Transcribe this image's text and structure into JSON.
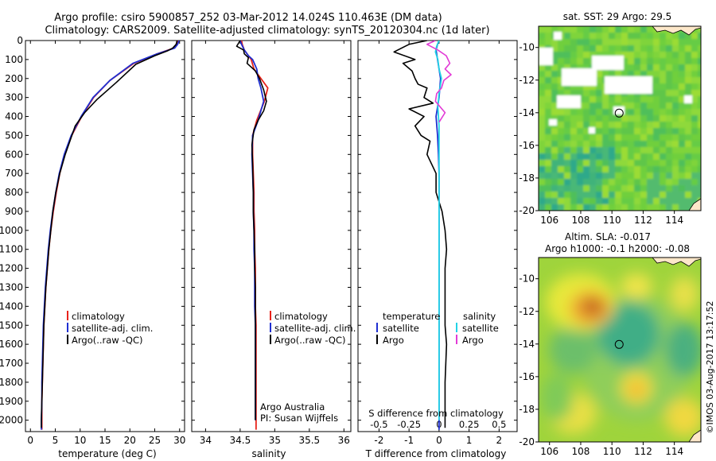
{
  "header": {
    "title_line1": "Argo profile: csiro 5900857_252 03-Mar-2012 14.024S 110.463E (DM data)",
    "title_line2": "Climatology: CARS2009. Satellite-adjusted climatology: synTS_20120304.nc (1d later)"
  },
  "footer": {
    "stamp": "©IMOS 03-Aug-2017 13:17:52"
  },
  "colors": {
    "climatology": "#e8231b",
    "satellite": "#1f2fd1",
    "argo": "#000000",
    "salinity_satellite": "#22d3e6",
    "salinity_argo": "#e23ad6"
  },
  "chart_data": [
    {
      "type": "line",
      "title": "",
      "xlabel": "temperature (deg C)",
      "ylabel": "",
      "xlim": [
        -1,
        31
      ],
      "ylim": [
        2060,
        0
      ],
      "xticks": [
        0,
        5,
        10,
        15,
        20,
        25,
        30
      ],
      "yticks": [
        0,
        100,
        200,
        300,
        400,
        500,
        600,
        700,
        800,
        900,
        1000,
        1100,
        1200,
        1300,
        1400,
        1500,
        1600,
        1700,
        1800,
        1900,
        2000
      ],
      "legend": {
        "position": "bottom-center",
        "entries": [
          "climatology",
          "satellite-adj. clim.",
          "Argo(..raw -QC)"
        ]
      },
      "series": [
        {
          "name": "climatology",
          "color": "#e8231b",
          "x": [
            29.6,
            29.4,
            28.8,
            25.5,
            20.8,
            16.0,
            12.7,
            10.3,
            8.3,
            6.9,
            5.9,
            5.2,
            4.6,
            4.1,
            3.7,
            3.4,
            3.1,
            2.9,
            2.7,
            2.6,
            2.5,
            2.4,
            2.3,
            2.3,
            2.3
          ],
          "y": [
            0,
            20,
            40,
            70,
            120,
            210,
            300,
            400,
            500,
            600,
            700,
            800,
            900,
            1000,
            1100,
            1200,
            1300,
            1400,
            1500,
            1600,
            1700,
            1800,
            1900,
            2000,
            2050
          ]
        },
        {
          "name": "satellite-adj. clim.",
          "color": "#1f2fd1",
          "x": [
            29.9,
            29.6,
            29.0,
            25.5,
            20.6,
            16.0,
            12.6,
            10.2,
            8.2,
            6.8,
            5.8,
            5.1,
            4.5,
            4.0,
            3.6,
            3.3,
            3.0,
            2.8,
            2.6,
            2.5,
            2.4,
            2.3,
            2.3,
            2.2,
            2.2
          ],
          "y": [
            0,
            20,
            40,
            70,
            120,
            210,
            300,
            400,
            500,
            600,
            700,
            800,
            900,
            1000,
            1100,
            1200,
            1300,
            1400,
            1500,
            1600,
            1700,
            1800,
            1900,
            2000,
            2050
          ]
        },
        {
          "name": "Argo(..raw -QC)",
          "color": "#000000",
          "x": [
            29.5,
            29.3,
            28.6,
            27.5,
            25.0,
            21.2,
            17.3,
            13.4,
            10.9,
            9.0,
            7.0,
            5.9,
            5.1,
            4.5,
            4.1,
            3.7,
            3.4,
            3.1,
            2.9,
            2.7,
            2.6,
            2.5,
            2.4,
            2.3,
            2.2,
            2.2
          ],
          "y": [
            0,
            20,
            40,
            55,
            80,
            125,
            220,
            310,
            380,
            450,
            600,
            700,
            800,
            900,
            1000,
            1100,
            1200,
            1300,
            1400,
            1500,
            1600,
            1700,
            1800,
            1900,
            2000,
            2040
          ]
        }
      ]
    },
    {
      "type": "line",
      "title": "",
      "xlabel": "salinity",
      "ylabel": "",
      "xlim": [
        33.8,
        36.1
      ],
      "ylim": [
        2060,
        0
      ],
      "xticks": [
        34,
        34.5,
        35,
        35.5,
        36
      ],
      "legend": {
        "position": "bottom-center",
        "entries": [
          "climatology",
          "satellite-adj. clim.",
          "Argo(..raw -QC)"
        ]
      },
      "annotation": "Argo Australia\nPI: Susan Wijffels",
      "series": [
        {
          "name": "climatology",
          "color": "#e8231b",
          "x": [
            34.52,
            34.53,
            34.56,
            34.62,
            34.66,
            34.7,
            34.8,
            34.9,
            34.85,
            34.74,
            34.68,
            34.68,
            34.69,
            34.7,
            34.7,
            34.71,
            34.71,
            34.72,
            34.72,
            34.72,
            34.73,
            34.73,
            34.73,
            34.73,
            34.73,
            34.73
          ],
          "y": [
            0,
            20,
            50,
            80,
            100,
            150,
            200,
            250,
            320,
            420,
            500,
            600,
            700,
            800,
            900,
            1000,
            1100,
            1200,
            1300,
            1400,
            1500,
            1600,
            1700,
            1800,
            1900,
            2050
          ]
        },
        {
          "name": "satellite-adj. clim.",
          "color": "#1f2fd1",
          "x": [
            34.5,
            34.52,
            34.56,
            34.62,
            34.68,
            34.74,
            34.76,
            34.8,
            34.84,
            34.76,
            34.68,
            34.67,
            34.68,
            34.69,
            34.69,
            34.7,
            34.7,
            34.71,
            34.71,
            34.71,
            34.72,
            34.72,
            34.72,
            34.72,
            34.72,
            34.72
          ],
          "y": [
            0,
            20,
            50,
            80,
            100,
            150,
            200,
            250,
            320,
            420,
            500,
            600,
            700,
            800,
            900,
            1000,
            1100,
            1200,
            1300,
            1400,
            1500,
            1600,
            1700,
            1800,
            1900,
            2000
          ]
        },
        {
          "name": "Argo(..raw -QC)",
          "color": "#000000",
          "x": [
            34.5,
            34.45,
            34.55,
            34.56,
            34.62,
            34.6,
            34.72,
            34.78,
            34.84,
            34.88,
            34.84,
            34.76,
            34.7,
            34.67,
            34.68,
            34.69,
            34.69,
            34.7,
            34.71,
            34.71,
            34.72,
            34.72,
            34.72,
            34.72,
            34.72,
            34.72
          ],
          "y": [
            0,
            30,
            50,
            70,
            90,
            120,
            160,
            200,
            260,
            320,
            370,
            420,
            470,
            550,
            650,
            800,
            900,
            1000,
            1100,
            1200,
            1300,
            1400,
            1500,
            1600,
            1800,
            2000
          ]
        }
      ]
    },
    {
      "type": "line",
      "title": "",
      "xlabel": "T difference from climatology",
      "xlabel_top": "S difference from climatology",
      "ylabel": "",
      "xlim": [
        -2.7,
        2.6
      ],
      "ylim": [
        2060,
        0
      ],
      "xticks": [
        -2,
        -1,
        0,
        1,
        2
      ],
      "xticks_top": [
        "-0.5",
        "-0.25",
        "0",
        "0.25",
        "0.5"
      ],
      "legend": {
        "position": "bottom-center",
        "groups": [
          "temperature",
          "salinity"
        ],
        "entries": [
          "satellite",
          "Argo",
          "satellite",
          "Argo"
        ]
      },
      "series": [
        {
          "name": "satellite",
          "group": "temperature",
          "color": "#1f2fd1",
          "x": [
            0.0,
            -0.05,
            -0.1,
            -0.05,
            0.0,
            0.05,
            0.0,
            -0.05,
            -0.1,
            -0.05,
            -0.02,
            0.0,
            0.0,
            0.0,
            0.0,
            0.0,
            0.0,
            0.0,
            0.0,
            0.0,
            0.0,
            0.0
          ],
          "y": [
            0,
            20,
            50,
            100,
            150,
            200,
            300,
            350,
            400,
            500,
            600,
            700,
            800,
            900,
            1000,
            1200,
            1400,
            1600,
            1800,
            1900,
            2000,
            2050
          ]
        },
        {
          "name": "Argo",
          "group": "temperature",
          "color": "#000000",
          "x": [
            -0.4,
            -1.0,
            -1.5,
            -0.8,
            -1.2,
            -0.9,
            -0.8,
            -0.7,
            -0.4,
            -0.5,
            -0.2,
            -1.0,
            -0.5,
            -0.8,
            -0.6,
            -0.3,
            -0.4,
            -0.1,
            -0.1,
            0.1,
            0.2,
            0.25,
            0.2,
            0.2,
            0.2,
            0.25,
            0.2,
            0.2,
            0.2
          ],
          "y": [
            0,
            20,
            60,
            100,
            120,
            160,
            200,
            230,
            250,
            300,
            330,
            360,
            400,
            450,
            500,
            530,
            600,
            700,
            800,
            900,
            1000,
            1100,
            1200,
            1400,
            1500,
            1600,
            1800,
            1950,
            2040
          ]
        },
        {
          "name": "satellite",
          "group": "salinity",
          "color": "#22d3e6",
          "x": [
            0.0,
            -0.02,
            -0.03,
            -0.01,
            0.0,
            0.02,
            0.0,
            -0.01,
            0.0,
            0.0,
            0.0,
            0.0,
            0.0,
            0.0,
            0.0,
            0.0,
            0.0,
            0.0,
            0.0,
            0.0
          ],
          "y": [
            0,
            30,
            60,
            100,
            150,
            200,
            280,
            350,
            450,
            600,
            700,
            900,
            1100,
            1300,
            1500,
            1600,
            1700,
            1800,
            1900,
            2000
          ]
        },
        {
          "name": "Argo",
          "group": "salinity",
          "color": "#e23ad6",
          "x": [
            -0.03,
            -0.1,
            -0.01,
            0.06,
            0.09,
            0.05,
            0.1,
            0.04,
            0.02,
            -0.02,
            -0.03,
            0.05,
            0.0
          ],
          "y": [
            0,
            20,
            50,
            80,
            120,
            150,
            180,
            210,
            250,
            280,
            320,
            380,
            430
          ]
        }
      ]
    },
    {
      "type": "heatmap",
      "title": "sat. SST: 29 Argo: 29.5",
      "xticks": [
        106,
        108,
        110,
        112,
        114
      ],
      "yticks": [
        -10,
        -12,
        -14,
        -16,
        -18,
        -20
      ],
      "xlim": [
        105.3,
        115.7
      ],
      "ylim": [
        -20,
        -8.7
      ],
      "marker": {
        "lon": 110.463,
        "lat": -14.024
      }
    },
    {
      "type": "heatmap",
      "title_line1": "Altim. SLA: -0.017",
      "title_line2": "Argo h1000: -0.1 h2000: -0.08",
      "xticks": [
        106,
        108,
        110,
        112,
        114
      ],
      "yticks": [
        -10,
        -12,
        -14,
        -16,
        -18,
        -20
      ],
      "xlim": [
        105.3,
        115.7
      ],
      "ylim": [
        -20,
        -8.7
      ],
      "marker": {
        "lon": 110.463,
        "lat": -14.024
      }
    }
  ]
}
